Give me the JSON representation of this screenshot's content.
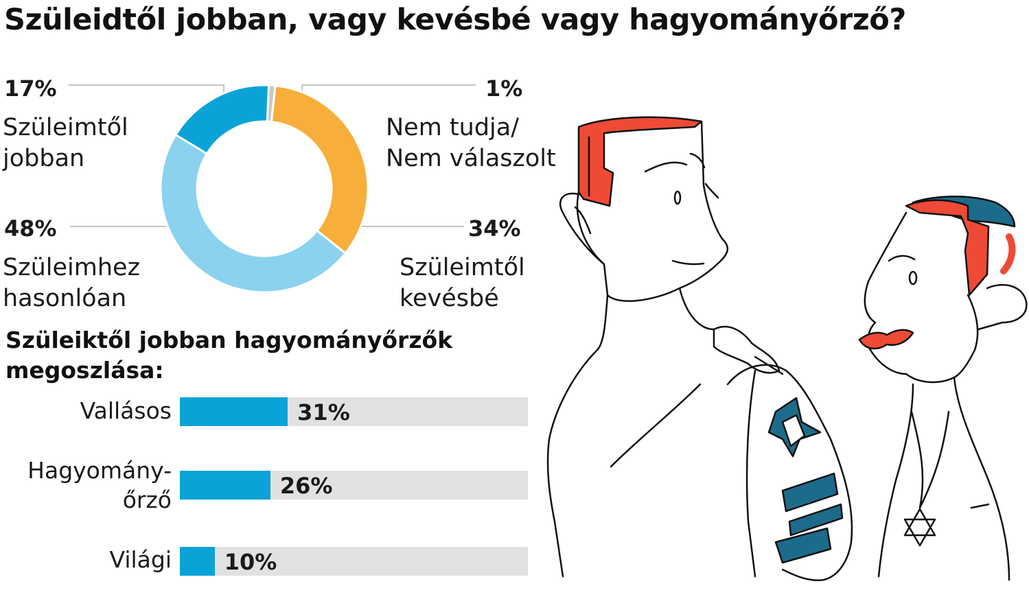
{
  "title": "Szüleidtől jobban, vagy kevésbé vagy hagyományőrző?",
  "donut": {
    "segments": [
      {
        "pct_label": "17%",
        "line1": "Szüleimtől",
        "line2": "jobban",
        "value": 17,
        "color": "#0aa3d8"
      },
      {
        "pct_label": "1%",
        "line1": "Nem tudja/",
        "line2": "Nem válaszolt",
        "value": 1,
        "color": "#c8c8c8"
      },
      {
        "pct_label": "34%",
        "line1": "Szüleimtől",
        "line2": "kevésbé",
        "value": 34,
        "color": "#f7ae3b"
      },
      {
        "pct_label": "48%",
        "line1": "Szüleimhez",
        "line2": "hasonlóan",
        "value": 48,
        "color": "#8ad2ee"
      }
    ]
  },
  "breakdown": {
    "title": "Szüleiktől jobban hagyományőrzők megoszlása:",
    "bars": [
      {
        "line1": "Vallásos",
        "line2": "",
        "value_label": "31%",
        "value": 31
      },
      {
        "line1": "Hagyomány-",
        "line2": "őrző",
        "value_label": "26%",
        "value": 26
      },
      {
        "line1": "Világi",
        "line2": "",
        "value_label": "10%",
        "value": 10
      }
    ],
    "fill_color": "#0aa3d8",
    "track_color": "#e1e1e1"
  },
  "chart_data": [
    {
      "type": "pie",
      "title": "Szüleidtől jobban, vagy kevésbé vagy hagyományőrző?",
      "categories": [
        "Szüleimtől jobban",
        "Nem tudja/Nem válaszolt",
        "Szüleimtől kevésbé",
        "Szüleimhez hasonlóan"
      ],
      "values": [
        17,
        1,
        34,
        48
      ]
    },
    {
      "type": "bar",
      "title": "Szüleiktől jobban hagyományőrzők megoszlása:",
      "categories": [
        "Vallásos",
        "Hagyomány-őrző",
        "Világi"
      ],
      "values": [
        31,
        26,
        10
      ],
      "xlim": [
        0,
        100
      ]
    }
  ]
}
